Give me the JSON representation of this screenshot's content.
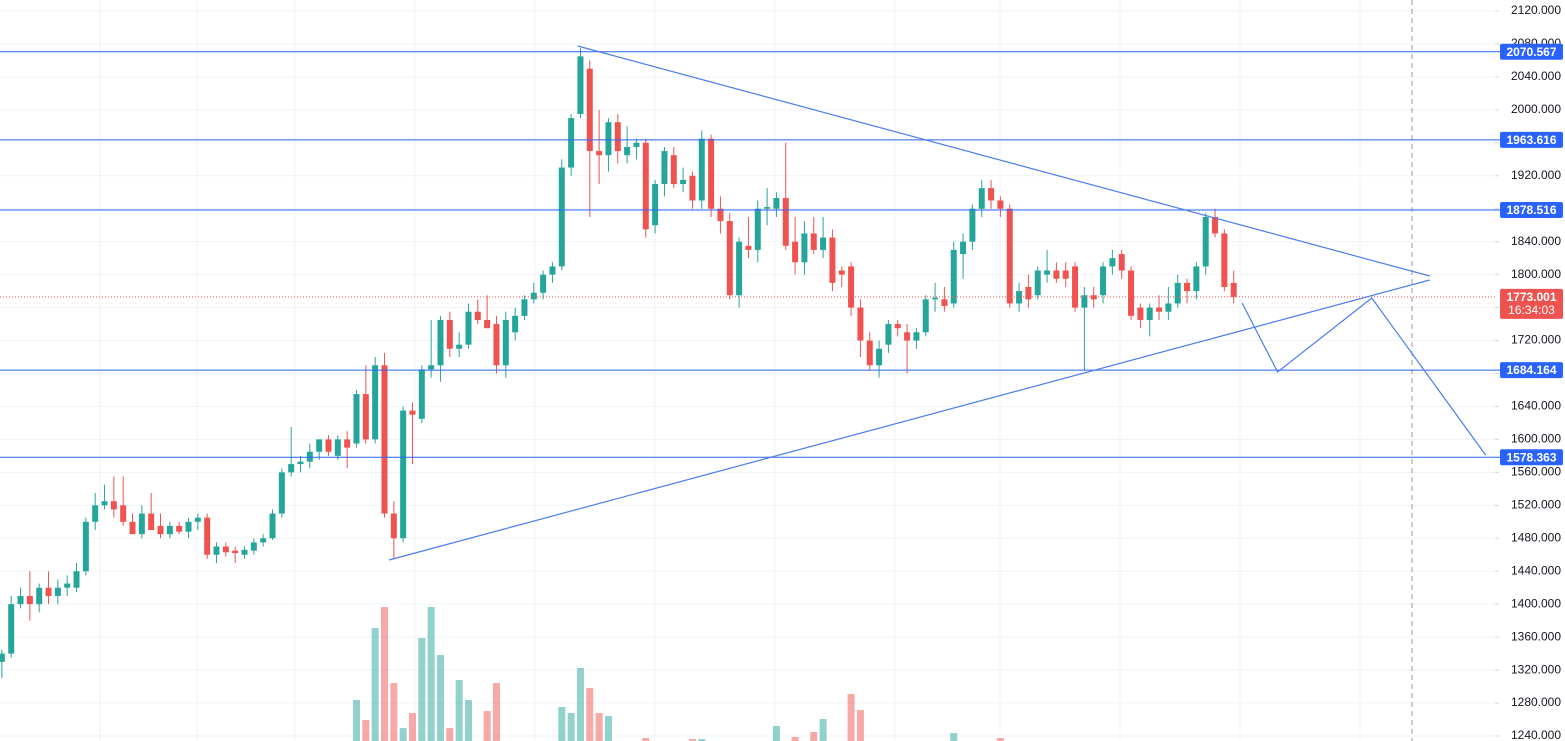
{
  "chart_data": {
    "type": "candlestick",
    "ohlc": [
      [
        1330,
        1345,
        1310,
        1340
      ],
      [
        1340,
        1410,
        1335,
        1400
      ],
      [
        1400,
        1420,
        1395,
        1410
      ],
      [
        1410,
        1440,
        1380,
        1400
      ],
      [
        1400,
        1425,
        1390,
        1420
      ],
      [
        1420,
        1440,
        1400,
        1410
      ],
      [
        1410,
        1430,
        1400,
        1420
      ],
      [
        1420,
        1435,
        1410,
        1425
      ],
      [
        1420,
        1450,
        1415,
        1440
      ],
      [
        1440,
        1505,
        1435,
        1500
      ],
      [
        1500,
        1535,
        1490,
        1520
      ],
      [
        1520,
        1545,
        1515,
        1525
      ],
      [
        1525,
        1555,
        1505,
        1515
      ],
      [
        1520,
        1555,
        1495,
        1500
      ],
      [
        1500,
        1510,
        1485,
        1485
      ],
      [
        1485,
        1520,
        1480,
        1510
      ],
      [
        1510,
        1535,
        1490,
        1490
      ],
      [
        1495,
        1510,
        1480,
        1485
      ],
      [
        1485,
        1500,
        1480,
        1495
      ],
      [
        1495,
        1500,
        1485,
        1488
      ],
      [
        1488,
        1505,
        1480,
        1500
      ],
      [
        1500,
        1510,
        1490,
        1505
      ],
      [
        1505,
        1510,
        1455,
        1460
      ],
      [
        1460,
        1475,
        1450,
        1470
      ],
      [
        1470,
        1475,
        1458,
        1463
      ],
      [
        1465,
        1470,
        1450,
        1462
      ],
      [
        1460,
        1470,
        1455,
        1466
      ],
      [
        1465,
        1480,
        1460,
        1475
      ],
      [
        1475,
        1485,
        1470,
        1480
      ],
      [
        1480,
        1515,
        1478,
        1510
      ],
      [
        1510,
        1565,
        1505,
        1560
      ],
      [
        1560,
        1615,
        1555,
        1570
      ],
      [
        1570,
        1580,
        1560,
        1573
      ],
      [
        1573,
        1595,
        1565,
        1585
      ],
      [
        1585,
        1600,
        1575,
        1600
      ],
      [
        1600,
        1605,
        1580,
        1585
      ],
      [
        1580,
        1605,
        1575,
        1600
      ],
      [
        1600,
        1610,
        1565,
        1590
      ],
      [
        1595,
        1660,
        1590,
        1655
      ],
      [
        1655,
        1690,
        1595,
        1600
      ],
      [
        1600,
        1700,
        1595,
        1690
      ],
      [
        1690,
        1705,
        1505,
        1510
      ],
      [
        1510,
        1525,
        1455,
        1480
      ],
      [
        1480,
        1640,
        1475,
        1635
      ],
      [
        1635,
        1645,
        1570,
        1630
      ],
      [
        1625,
        1690,
        1620,
        1685
      ],
      [
        1685,
        1745,
        1675,
        1690
      ],
      [
        1690,
        1750,
        1670,
        1745
      ],
      [
        1745,
        1755,
        1700,
        1710
      ],
      [
        1710,
        1730,
        1700,
        1715
      ],
      [
        1715,
        1765,
        1710,
        1755
      ],
      [
        1755,
        1770,
        1740,
        1745
      ],
      [
        1745,
        1775,
        1735,
        1735
      ],
      [
        1740,
        1750,
        1680,
        1690
      ],
      [
        1690,
        1755,
        1675,
        1745
      ],
      [
        1730,
        1760,
        1720,
        1750
      ],
      [
        1750,
        1775,
        1745,
        1770
      ],
      [
        1770,
        1790,
        1765,
        1778
      ],
      [
        1778,
        1805,
        1770,
        1800
      ],
      [
        1800,
        1815,
        1790,
        1810
      ],
      [
        1810,
        1940,
        1805,
        1930
      ],
      [
        1930,
        1995,
        1920,
        1990
      ],
      [
        1995,
        2075,
        1990,
        2065
      ],
      [
        2050,
        2060,
        1870,
        1950
      ],
      [
        1950,
        2000,
        1910,
        1945
      ],
      [
        1945,
        1990,
        1925,
        1985
      ],
      [
        1985,
        1995,
        1935,
        1950
      ],
      [
        1945,
        1980,
        1935,
        1955
      ],
      [
        1955,
        1965,
        1940,
        1960
      ],
      [
        1960,
        1965,
        1845,
        1855
      ],
      [
        1860,
        1915,
        1850,
        1910
      ],
      [
        1910,
        1955,
        1895,
        1950
      ],
      [
        1945,
        1955,
        1905,
        1910
      ],
      [
        1910,
        1930,
        1900,
        1915
      ],
      [
        1920,
        1925,
        1880,
        1890
      ],
      [
        1890,
        1975,
        1880,
        1965
      ],
      [
        1965,
        1970,
        1870,
        1880
      ],
      [
        1880,
        1895,
        1850,
        1865
      ],
      [
        1865,
        1875,
        1770,
        1775
      ],
      [
        1775,
        1845,
        1760,
        1840
      ],
      [
        1835,
        1870,
        1820,
        1830
      ],
      [
        1830,
        1890,
        1815,
        1880
      ],
      [
        1880,
        1905,
        1860,
        1882
      ],
      [
        1880,
        1900,
        1870,
        1893
      ],
      [
        1893,
        1960,
        1830,
        1835
      ],
      [
        1840,
        1870,
        1800,
        1815
      ],
      [
        1815,
        1865,
        1800,
        1850
      ],
      [
        1850,
        1870,
        1825,
        1830
      ],
      [
        1830,
        1870,
        1820,
        1845
      ],
      [
        1845,
        1855,
        1780,
        1790
      ],
      [
        1805,
        1810,
        1785,
        1800
      ],
      [
        1810,
        1815,
        1750,
        1760
      ],
      [
        1760,
        1770,
        1700,
        1720
      ],
      [
        1720,
        1730,
        1685,
        1690
      ],
      [
        1690,
        1720,
        1675,
        1710
      ],
      [
        1715,
        1745,
        1705,
        1740
      ],
      [
        1740,
        1745,
        1725,
        1735
      ],
      [
        1730,
        1740,
        1680,
        1720
      ],
      [
        1720,
        1735,
        1710,
        1730
      ],
      [
        1730,
        1775,
        1725,
        1770
      ],
      [
        1770,
        1790,
        1755,
        1772
      ],
      [
        1770,
        1785,
        1755,
        1762
      ],
      [
        1765,
        1840,
        1760,
        1830
      ],
      [
        1825,
        1850,
        1795,
        1840
      ],
      [
        1840,
        1885,
        1830,
        1880
      ],
      [
        1880,
        1915,
        1870,
        1905
      ],
      [
        1905,
        1915,
        1880,
        1890
      ],
      [
        1890,
        1895,
        1870,
        1880
      ],
      [
        1880,
        1885,
        1760,
        1765
      ],
      [
        1765,
        1790,
        1755,
        1780
      ],
      [
        1785,
        1800,
        1760,
        1770
      ],
      [
        1775,
        1810,
        1770,
        1805
      ],
      [
        1800,
        1830,
        1790,
        1805
      ],
      [
        1805,
        1815,
        1790,
        1795
      ],
      [
        1805,
        1815,
        1785,
        1795
      ],
      [
        1810,
        1815,
        1755,
        1760
      ],
      [
        1760,
        1785,
        1684,
        1775
      ],
      [
        1775,
        1785,
        1760,
        1770
      ],
      [
        1775,
        1815,
        1765,
        1810
      ],
      [
        1810,
        1830,
        1800,
        1820
      ],
      [
        1825,
        1830,
        1795,
        1805
      ],
      [
        1805,
        1810,
        1745,
        1750
      ],
      [
        1760,
        1765,
        1735,
        1745
      ],
      [
        1745,
        1765,
        1725,
        1760
      ],
      [
        1760,
        1775,
        1745,
        1755
      ],
      [
        1755,
        1785,
        1745,
        1765
      ],
      [
        1765,
        1800,
        1760,
        1790
      ],
      [
        1790,
        1795,
        1765,
        1780
      ],
      [
        1780,
        1815,
        1770,
        1810
      ],
      [
        1810,
        1875,
        1800,
        1870
      ],
      [
        1870,
        1880,
        1845,
        1850
      ],
      [
        1850,
        1855,
        1780,
        1785
      ],
      [
        1790,
        1805,
        1765,
        1773
      ]
    ],
    "volume": [
      null,
      null,
      null,
      null,
      null,
      null,
      null,
      null,
      null,
      null,
      null,
      null,
      null,
      null,
      null,
      null,
      null,
      null,
      null,
      null,
      null,
      null,
      null,
      null,
      null,
      null,
      null,
      null,
      null,
      null,
      null,
      null,
      null,
      null,
      null,
      null,
      null,
      null,
      41,
      21,
      113,
      134,
      58,
      13,
      28,
      103,
      134,
      86,
      13,
      61,
      41,
      null,
      30,
      58,
      null,
      null,
      null,
      null,
      null,
      null,
      34,
      28,
      73,
      53,
      28,
      25,
      null,
      null,
      null,
      3,
      null,
      null,
      null,
      null,
      2,
      2,
      null,
      null,
      null,
      null,
      null,
      null,
      null,
      15,
      null,
      4,
      null,
      9,
      22,
      null,
      null,
      47,
      31,
      null,
      null,
      null,
      null,
      null,
      null,
      null,
      null,
      null,
      8,
      null,
      null,
      null,
      null,
      3,
      null,
      null,
      null,
      null,
      null,
      null,
      null,
      null,
      null,
      null,
      null,
      null,
      null,
      null,
      null,
      null,
      null,
      null,
      null,
      null,
      null,
      null,
      null,
      null,
      null
    ],
    "volume_ylim": [
      0,
      400
    ],
    "xlim": [
      -0.2,
      160
    ],
    "ylim": [
      1240,
      2120
    ],
    "yticks": [
      {
        "value": 1240,
        "label": "1240.000"
      },
      {
        "value": 1280,
        "label": "1280.000"
      },
      {
        "value": 1320,
        "label": "1320.000"
      },
      {
        "value": 1360,
        "label": "1360.000"
      },
      {
        "value": 1400,
        "label": "1400.000"
      },
      {
        "value": 1440,
        "label": "1440.000"
      },
      {
        "value": 1480,
        "label": "1480.000"
      },
      {
        "value": 1520,
        "label": "1520.000"
      },
      {
        "value": 1560,
        "label": "1560.000"
      },
      {
        "value": 1600,
        "label": "1600.000"
      },
      {
        "value": 1640,
        "label": "1640.000"
      },
      {
        "value": 1680,
        "label": "1680.000"
      },
      {
        "value": 1720,
        "label": "1720.000"
      },
      {
        "value": 1760,
        "label": "1760.000"
      },
      {
        "value": 1800,
        "label": "1800.000"
      },
      {
        "value": 1840,
        "label": "1840.000"
      },
      {
        "value": 1880,
        "label": "1880.000"
      },
      {
        "value": 1920,
        "label": "1920.000"
      },
      {
        "value": 1960,
        "label": "1960.000"
      },
      {
        "value": 2000,
        "label": "2000.000"
      },
      {
        "value": 2040,
        "label": "2040.000"
      },
      {
        "value": 2080,
        "label": "2080.000"
      },
      {
        "value": 2120,
        "label": "2120.000"
      }
    ],
    "grid": true,
    "up_color": "#26a69a",
    "down_color": "#ef5350",
    "levels": [
      2070.567,
      1963.616,
      1878.516,
      1684.164,
      1578.363
    ],
    "level_color": "#2962ff",
    "last_price": 1773.001,
    "countdown": "16:34:03",
    "drawing_color": "#4a7df0",
    "drawings": [
      {
        "points": [
          [
            61.7,
            2077.5
          ],
          [
            153,
            1798.3
          ]
        ]
      },
      {
        "points": [
          [
            41.5,
            1453.6
          ],
          [
            153,
            1793.5
          ]
        ]
      },
      {
        "points": [
          [
            132.9,
            1765.6
          ],
          [
            136.7,
            1681.8
          ],
          [
            146.8,
            1771.6
          ],
          [
            159,
            1581
          ]
        ]
      }
    ]
  }
}
